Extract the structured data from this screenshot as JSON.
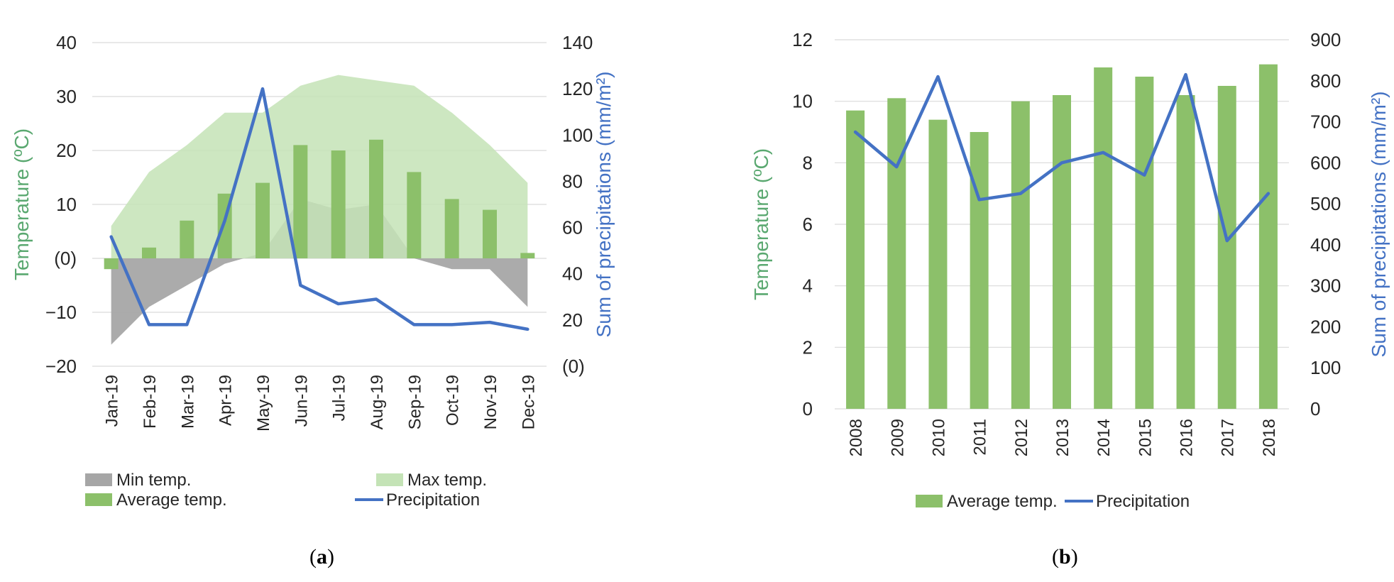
{
  "colors": {
    "axis_temp": "#5aa870",
    "axis_precip": "#4472c4",
    "bar_green": "#8cc06a",
    "max_area": "#c4e3b6",
    "min_area": "#a6a6a6",
    "line_blue": "#4472c4",
    "grid": "#d9d9d9",
    "tick_text": "#262626"
  },
  "chart_data": [
    {
      "panel_label": "a",
      "type": "combo",
      "categories": [
        "Jan-19",
        "Feb-19",
        "Mar-19",
        "Apr-19",
        "May-19",
        "Jun-19",
        "Jul-19",
        "Aug-19",
        "Sep-19",
        "Oct-19",
        "Nov-19",
        "Dec-19"
      ],
      "ylabel": "Temperature (ºC)",
      "ylabel2": "Sum of precipitations (mm/m²)",
      "ylim": [
        -20,
        40
      ],
      "y_ticks": [
        {
          "v": 40,
          "label": "40"
        },
        {
          "v": 30,
          "label": "30"
        },
        {
          "v": 20,
          "label": "20"
        },
        {
          "v": 10,
          "label": "10"
        },
        {
          "v": 0,
          "label": "(0)"
        },
        {
          "v": -10,
          "label": "−10"
        },
        {
          "v": -20,
          "label": "−20"
        }
      ],
      "y2lim": [
        0,
        140
      ],
      "y2_ticks": [
        {
          "v": 140,
          "label": "140"
        },
        {
          "v": 120,
          "label": "120"
        },
        {
          "v": 100,
          "label": "100"
        },
        {
          "v": 80,
          "label": "80"
        },
        {
          "v": 60,
          "label": "60"
        },
        {
          "v": 40,
          "label": "40"
        },
        {
          "v": 20,
          "label": "20"
        },
        {
          "v": 0,
          "label": "(0)"
        }
      ],
      "grid": true,
      "series": [
        {
          "name": "Min temp.",
          "kind": "area",
          "axis": "left",
          "values": [
            -16,
            -9,
            -5,
            -1,
            1,
            11,
            9,
            10,
            0,
            -2,
            -2,
            -9
          ]
        },
        {
          "name": "Max temp.",
          "kind": "area",
          "axis": "left",
          "values": [
            6,
            16,
            21,
            27,
            27,
            32,
            34,
            33,
            32,
            27,
            21,
            14
          ]
        },
        {
          "name": "Average temp.",
          "kind": "bar",
          "axis": "left",
          "values": [
            -2,
            2,
            7,
            12,
            14,
            21,
            20,
            22,
            16,
            11,
            9,
            1
          ]
        },
        {
          "name": "Precipitation",
          "kind": "line",
          "axis": "right",
          "values": [
            56,
            18,
            18,
            63,
            120,
            35,
            27,
            29,
            18,
            18,
            19,
            16
          ]
        }
      ],
      "legend": [
        {
          "label": "Min temp.",
          "kind": "area-min"
        },
        {
          "label": "Max temp.",
          "kind": "area-max"
        },
        {
          "label": "Average temp.",
          "kind": "bar"
        },
        {
          "label": "Precipitation",
          "kind": "line"
        }
      ]
    },
    {
      "panel_label": "b",
      "type": "combo",
      "categories": [
        "2008",
        "2009",
        "2010",
        "2011",
        "2012",
        "2013",
        "2014",
        "2015",
        "2016",
        "2017",
        "2018"
      ],
      "ylabel": "Temperature (ºC)",
      "ylabel2": "Sum of precipitations (mm/m²)",
      "ylim": [
        0,
        12
      ],
      "y_ticks": [
        {
          "v": 12,
          "label": "12"
        },
        {
          "v": 10,
          "label": "10"
        },
        {
          "v": 8,
          "label": "8"
        },
        {
          "v": 6,
          "label": "6"
        },
        {
          "v": 4,
          "label": "4"
        },
        {
          "v": 2,
          "label": "2"
        },
        {
          "v": 0,
          "label": "0"
        }
      ],
      "y2lim": [
        0,
        900
      ],
      "y2_ticks": [
        {
          "v": 900,
          "label": "900"
        },
        {
          "v": 800,
          "label": "800"
        },
        {
          "v": 700,
          "label": "700"
        },
        {
          "v": 600,
          "label": "600"
        },
        {
          "v": 500,
          "label": "500"
        },
        {
          "v": 400,
          "label": "400"
        },
        {
          "v": 300,
          "label": "300"
        },
        {
          "v": 200,
          "label": "200"
        },
        {
          "v": 100,
          "label": "100"
        },
        {
          "v": 0,
          "label": "0"
        }
      ],
      "grid": true,
      "series": [
        {
          "name": "Average temp.",
          "kind": "bar",
          "axis": "left",
          "values": [
            9.7,
            10.1,
            9.4,
            9.0,
            10.0,
            10.2,
            11.1,
            10.8,
            10.2,
            10.5,
            11.2
          ]
        },
        {
          "name": "Precipitation",
          "kind": "line",
          "axis": "right",
          "values": [
            675,
            590,
            810,
            510,
            525,
            600,
            625,
            570,
            815,
            410,
            525
          ]
        }
      ],
      "legend": [
        {
          "label": "Average temp.",
          "kind": "bar"
        },
        {
          "label": "Precipitation",
          "kind": "line"
        }
      ]
    }
  ]
}
